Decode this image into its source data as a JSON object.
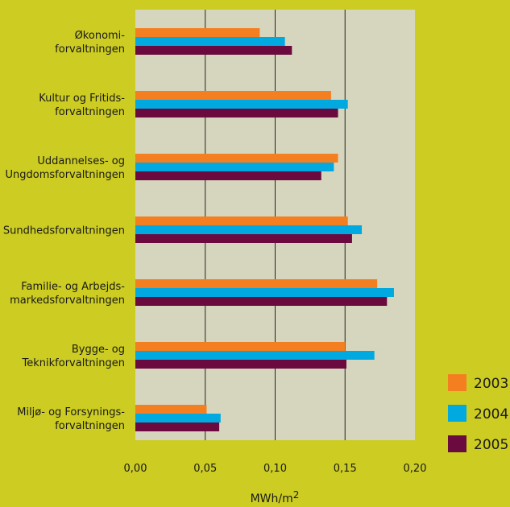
{
  "chart_data": {
    "type": "bar",
    "orientation": "horizontal",
    "categories": [
      [
        "Økonomi-",
        "forvaltningen"
      ],
      [
        "Kultur og Fritids-",
        "forvaltningen"
      ],
      [
        "Uddannelses- og",
        "Ungdomsforvaltningen"
      ],
      [
        "Sundhedsforvaltningen"
      ],
      [
        "Familie- og Arbejds-",
        "markedsforvaltningen"
      ],
      [
        "Bygge- og",
        "Teknikforvaltningen"
      ],
      [
        "Miljø- og Forsynings-",
        "forvaltningen"
      ]
    ],
    "series": [
      {
        "name": "2003",
        "color": "#f47f20",
        "values": [
          0.089,
          0.14,
          0.145,
          0.152,
          0.173,
          0.15,
          0.051
        ]
      },
      {
        "name": "2004",
        "color": "#00a9e0",
        "values": [
          0.107,
          0.152,
          0.142,
          0.162,
          0.185,
          0.171,
          0.061
        ]
      },
      {
        "name": "2005",
        "color": "#6b0a3e",
        "values": [
          0.112,
          0.145,
          0.133,
          0.155,
          0.18,
          0.151,
          0.06
        ]
      }
    ],
    "xlim": [
      0,
      0.2
    ],
    "xticks": [
      "0,00",
      "0,05",
      "0,10",
      "0,15",
      "0,20"
    ],
    "xlabel": "MWh/m",
    "xlabel_superscript": "2",
    "grid": "vertical",
    "legend_position": "bottom-right",
    "plot_background": "#d6d6be"
  }
}
